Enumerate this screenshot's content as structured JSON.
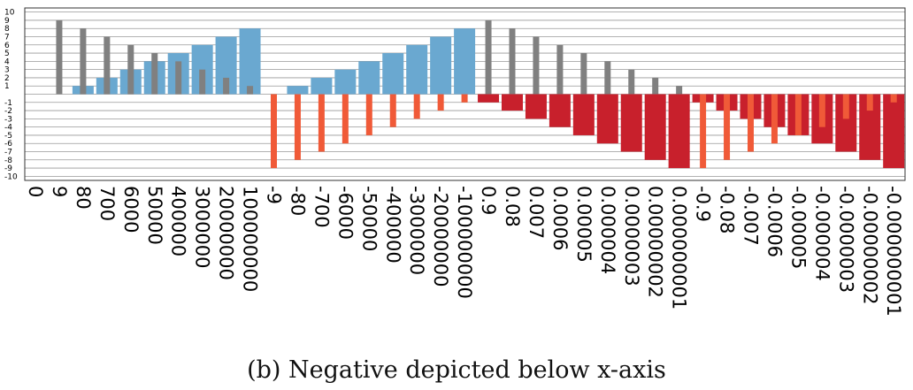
{
  "caption": "(b) Negative depicted below x-axis",
  "chart_data": {
    "type": "bar",
    "title": "",
    "xlabel": "",
    "ylabel": "",
    "ylim": [
      -10,
      10
    ],
    "yticks": [
      10,
      9,
      8,
      7,
      6,
      5,
      4,
      3,
      2,
      1,
      -1,
      -2,
      -3,
      -4,
      -5,
      -6,
      -7,
      -8,
      -9,
      -10
    ],
    "grid": true,
    "categories": [
      "0",
      "9",
      "80",
      "700",
      "6000",
      "50000",
      "400000",
      "3000000",
      "20000000",
      "100000000",
      "-9",
      "-80",
      "-700",
      "-6000",
      "-50000",
      "-400000",
      "-3000000",
      "-20000000",
      "-100000000",
      "0.9",
      "0.08",
      "0.007",
      "0.0006",
      "0.00005",
      "0.000004",
      "0.0000003",
      "0.00000002",
      "0.000000001",
      "-0.9",
      "-0.08",
      "-0.007",
      "-0.0006",
      "-0.00005",
      "-0.000004",
      "-0.0000003",
      "-0.00000002",
      "-0.000000001"
    ],
    "series": [
      {
        "color": "#808080",
        "values": [
          0,
          9,
          8,
          7,
          6,
          5,
          4,
          3,
          2,
          1,
          0,
          0,
          0,
          0,
          0,
          0,
          0,
          0,
          0,
          9,
          8,
          7,
          6,
          5,
          4,
          3,
          2,
          1,
          0,
          0,
          0,
          0,
          0,
          0,
          0,
          0,
          0
        ]
      },
      {
        "color": "#6aa8d0",
        "values": [
          0,
          0,
          1,
          2,
          3,
          4,
          5,
          6,
          7,
          8,
          0,
          1,
          2,
          3,
          4,
          5,
          6,
          7,
          8,
          0,
          0,
          0,
          0,
          0,
          0,
          0,
          0,
          0,
          0,
          0,
          0,
          0,
          0,
          0,
          0,
          0,
          0
        ]
      },
      {
        "color": "#f05a38",
        "values": [
          0,
          0,
          0,
          0,
          0,
          0,
          0,
          0,
          0,
          0,
          -9,
          -8,
          -7,
          -6,
          -5,
          -4,
          -3,
          -2,
          -1,
          0,
          0,
          0,
          0,
          0,
          0,
          0,
          0,
          0,
          -9,
          -8,
          -7,
          -6,
          -5,
          -4,
          -3,
          -2,
          -1
        ]
      },
      {
        "color": "#c8202c",
        "values": [
          0,
          0,
          0,
          0,
          0,
          0,
          0,
          0,
          0,
          0,
          0,
          0,
          0,
          0,
          0,
          0,
          0,
          0,
          0,
          -1,
          -2,
          -3,
          -4,
          -5,
          -6,
          -7,
          -8,
          -9,
          -1,
          -2,
          -3,
          -4,
          -5,
          -6,
          -7,
          -8,
          -9
        ]
      }
    ]
  }
}
